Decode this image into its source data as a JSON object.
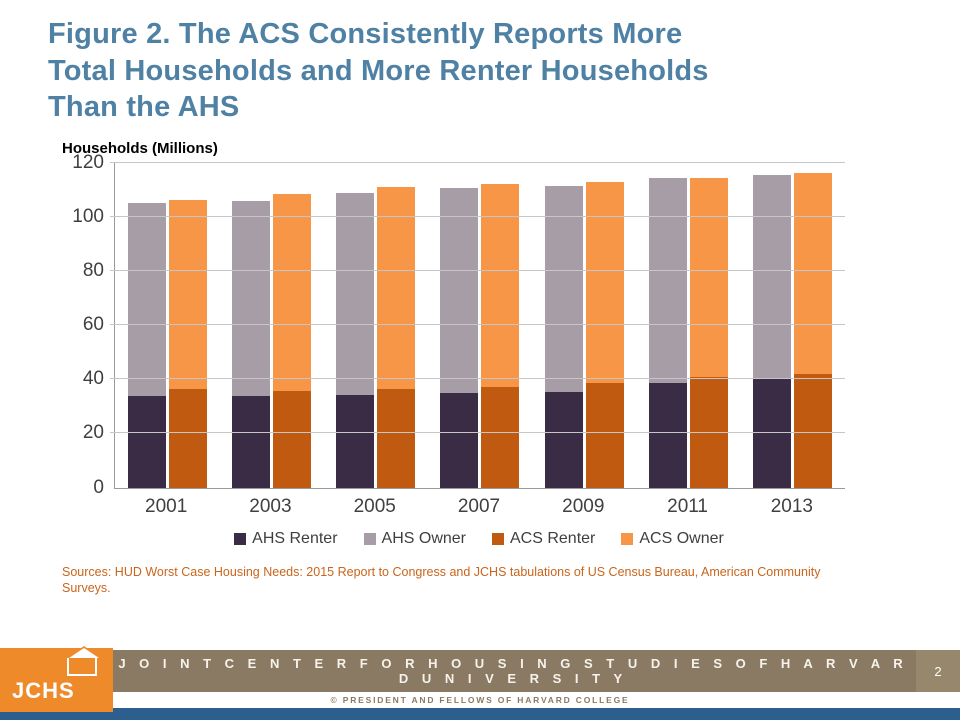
{
  "title": {
    "line1": "Figure 2. The ACS Consistently Reports More",
    "line2": "Total Households and More Renter Households",
    "line3": "Than the AHS"
  },
  "sources": "Sources: HUD Worst Case Housing Needs: 2015 Report to Congress and JCHS tabulations of US Census Bureau, American Community Surveys.",
  "footer": {
    "org": "J O I N T   C E N T E R   F O R   H O U S I N G   S T U D I E S   O F   H A R V A R D   U N I V E R S I T Y",
    "copyright": "© PRESIDENT AND FELLOWS OF HARVARD COLLEGE",
    "page_number": "2",
    "logo_text": "JCHS"
  },
  "colors": {
    "title_blue": "#4e81a4",
    "footer_brown": "#8a7a64",
    "footer_blue_bar": "#2d5f8e",
    "logo_orange": "#ef8a2b",
    "sources_text": "#c9651c"
  },
  "chart_data": {
    "type": "bar",
    "stacked": true,
    "title": "",
    "ylabel": "Households (Millions)",
    "xlabel": "",
    "ylim": [
      0,
      120
    ],
    "yticks": [
      0,
      20,
      40,
      60,
      80,
      100,
      120
    ],
    "grid": true,
    "legend_position": "bottom",
    "categories": [
      "2001",
      "2003",
      "2005",
      "2007",
      "2009",
      "2011",
      "2013"
    ],
    "stacks": [
      [
        "AHS Renter",
        "AHS Owner"
      ],
      [
        "ACS Renter",
        "ACS Owner"
      ]
    ],
    "series": [
      {
        "name": "AHS Renter",
        "color": "#3b2c45",
        "values": [
          33.7,
          33.8,
          34.1,
          35.0,
          35.4,
          38.7,
          40.2
        ]
      },
      {
        "name": "AHS Owner",
        "color": "#a79da7",
        "values": [
          71.3,
          72.0,
          74.8,
          75.5,
          76.1,
          75.8,
          75.3
        ]
      },
      {
        "name": "ACS Renter",
        "color": "#c05a11",
        "values": [
          36.3,
          35.7,
          36.5,
          37.0,
          38.5,
          40.7,
          42.0
        ]
      },
      {
        "name": "ACS Owner",
        "color": "#f79646",
        "values": [
          70.0,
          72.7,
          74.5,
          75.0,
          74.5,
          73.8,
          74.0
        ]
      }
    ]
  }
}
